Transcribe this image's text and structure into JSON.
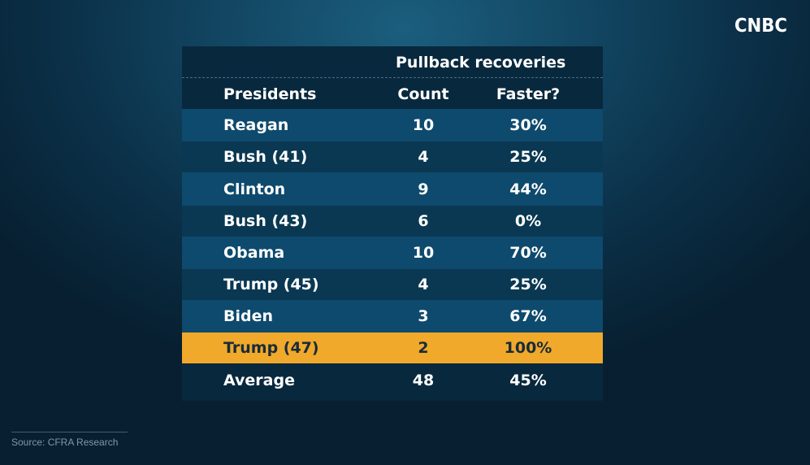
{
  "brand": "CNBC",
  "source": "Source: CFRA Research",
  "colors": {
    "row_light": "#0e4a6d",
    "row_dark": "#0a3852",
    "highlight": "#f0a92a",
    "highlight_text": "#1a2b3a",
    "text": "#ffffff"
  },
  "chart_data": {
    "type": "table",
    "group_header": "Pullback recoveries",
    "columns": [
      "Presidents",
      "Count",
      "Faster?"
    ],
    "rows": [
      {
        "name": "Reagan",
        "count": "10",
        "faster": "30%"
      },
      {
        "name": "Bush (41)",
        "count": "4",
        "faster": "25%"
      },
      {
        "name": "Clinton",
        "count": "9",
        "faster": "44%"
      },
      {
        "name": "Bush (43)",
        "count": "6",
        "faster": "0%"
      },
      {
        "name": "Obama",
        "count": "10",
        "faster": "70%"
      },
      {
        "name": "Trump (45)",
        "count": "4",
        "faster": "25%"
      },
      {
        "name": "Biden",
        "count": "3",
        "faster": "67%"
      },
      {
        "name": "Trump (47)",
        "count": "2",
        "faster": "100%",
        "highlight": true
      }
    ],
    "average": {
      "name": "Average",
      "count": "48",
      "faster": "45%"
    }
  }
}
